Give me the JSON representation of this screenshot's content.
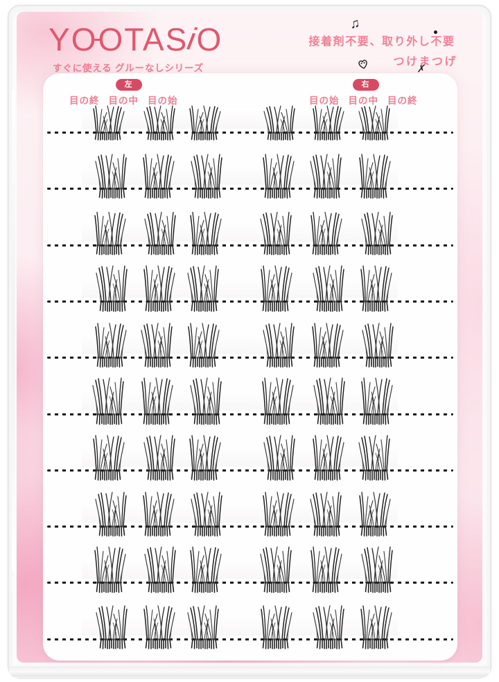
{
  "brand": {
    "logo": {
      "y": "Y",
      "o1": "O",
      "o2": "O",
      "mid": "TAS",
      "i": "i",
      "end": "O"
    },
    "tagline": "すぐに使える グルーなしシリーズ"
  },
  "claims": {
    "line1": "接着剤不要、取り外し不要",
    "line2": "つけまつげ"
  },
  "decorations": {
    "music_note": "♫",
    "dot": "●",
    "x_mark": "✗",
    "heart_face_doodle": "heart-face-doodle-icon"
  },
  "sheet": {
    "left_badge": "左",
    "left_columns": [
      "目の終",
      "目の中",
      "目の始"
    ],
    "right_badge": "右",
    "right_columns": [
      "目の始",
      "目の中",
      "目の終"
    ],
    "row_count": 10,
    "clusters_per_side": 3,
    "total_clusters": 60
  },
  "colors": {
    "brand_pink": "#e0586f",
    "badge_red": "#d84a63",
    "label_pink": "#ec8094",
    "lash_black": "#1e1e1e",
    "backing_pink": "#f5b9ca",
    "card_white": "#fffefe"
  }
}
